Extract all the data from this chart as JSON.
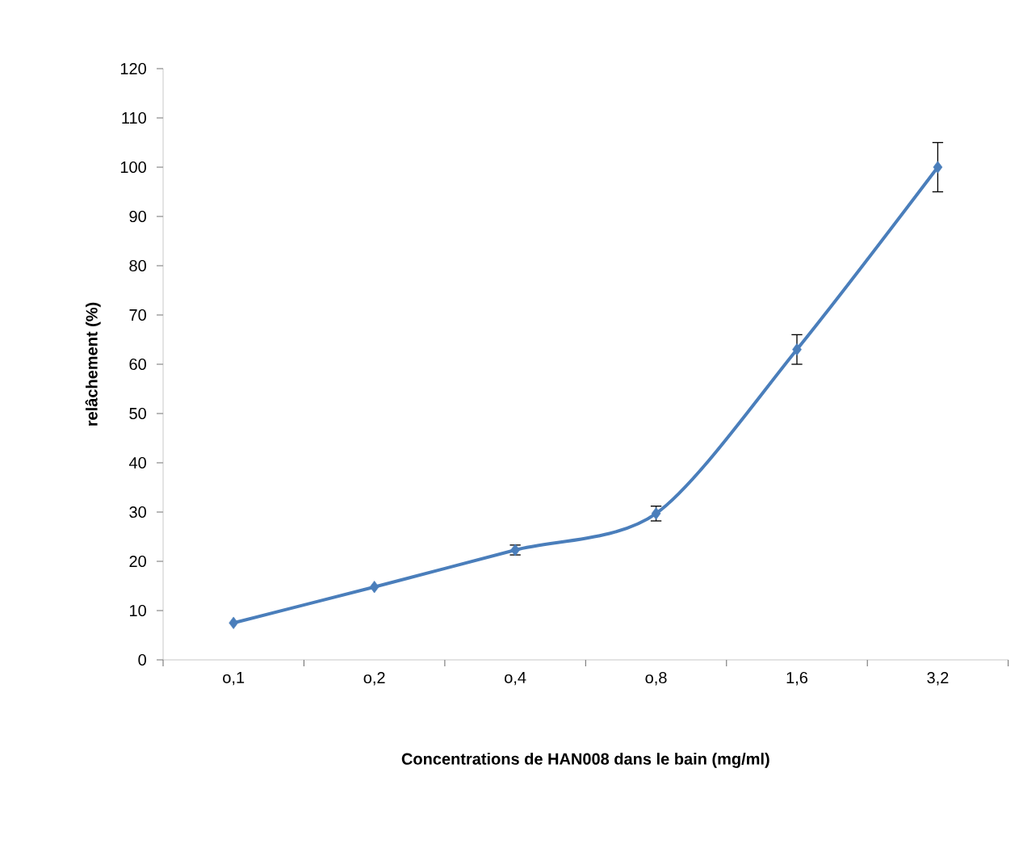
{
  "chart_data": {
    "type": "line",
    "xlabel": "Concentrations de HAN008 dans le bain (mg/ml)",
    "ylabel": "relâchement (%)",
    "categories": [
      "o,1",
      "o,2",
      "o,4",
      "o,8",
      "1,6",
      "3,2"
    ],
    "values": [
      7.5,
      14.8,
      22.3,
      29.7,
      63,
      100
    ],
    "errors": [
      null,
      null,
      1,
      1.5,
      3,
      5
    ],
    "color": "#4a7ebb",
    "marker": "diamond",
    "line_style": "solid",
    "ylim": [
      0,
      120
    ],
    "yticks": [
      0,
      10,
      20,
      30,
      40,
      50,
      60,
      70,
      80,
      90,
      100,
      110,
      120
    ]
  }
}
